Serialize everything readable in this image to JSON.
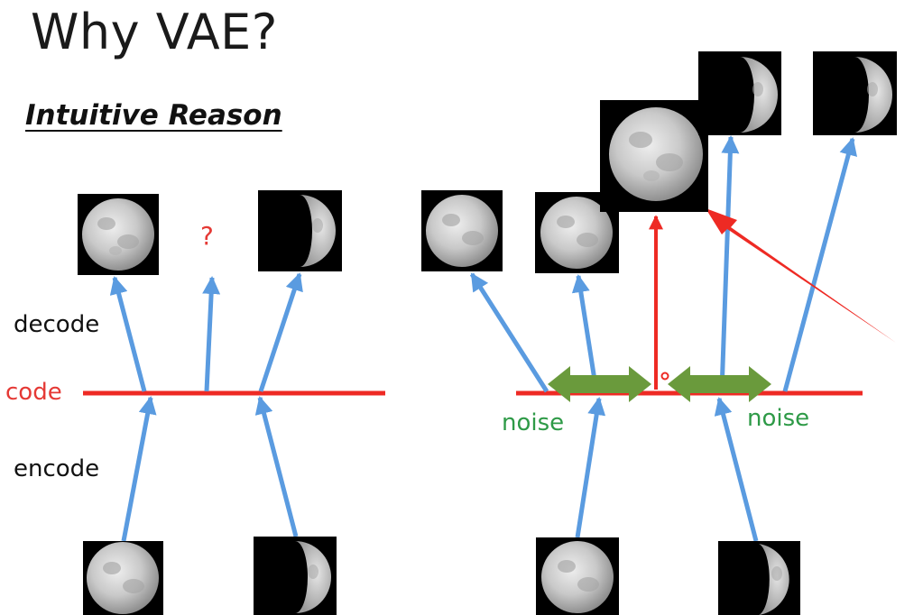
{
  "title": "Why VAE?",
  "subtitle": "Intuitive Reason",
  "labels": {
    "decode": "decode",
    "code": "code",
    "encode": "encode",
    "question": "?",
    "noise_left": "noise",
    "noise_right": "noise"
  },
  "colors": {
    "code_line": "#ee2a24",
    "arrow_blue": "#5a9be0",
    "noise_arrow": "#6a9a3c",
    "text_red": "#e53935",
    "text_green": "#2e9a47"
  },
  "icons": {
    "full_moon": "full-moon-image",
    "half_moon": "half-moon-image"
  }
}
